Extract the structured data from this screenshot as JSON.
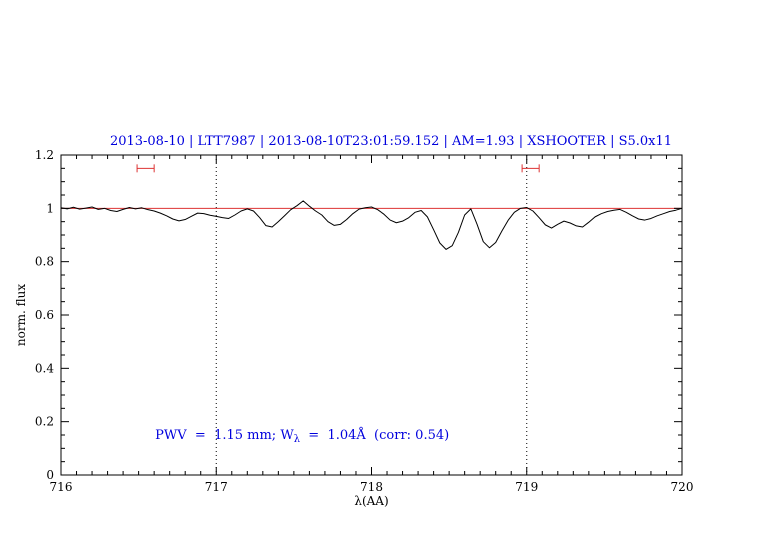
{
  "chart_data": {
    "type": "line",
    "title": "2013-08-10 | LTT7987 | 2013-08-10T23:01:59.152 | AM=1.93 | XSHOOTER | S5.0x11",
    "xlabel": "λ(AA)",
    "ylabel": "norm. flux",
    "xlim": [
      716,
      720
    ],
    "ylim": [
      0,
      1.2
    ],
    "x_tick_values": [
      716,
      717,
      718,
      719,
      720
    ],
    "x_tick_labels": [
      "716",
      "717",
      "718",
      "719",
      "720"
    ],
    "x_minor_step": 0.1,
    "y_tick_values": [
      0,
      0.2,
      0.4,
      0.6,
      0.8,
      1,
      1.2
    ],
    "y_tick_labels": [
      "0",
      "0.2",
      "0.4",
      "0.6",
      "0.8",
      "1",
      "1.2"
    ],
    "y_minor_step": 0.05,
    "grid": false,
    "legend": "none",
    "reference_line_y": 1.0,
    "dotted_vlines": [
      717,
      719
    ],
    "pwv_markers": [
      {
        "x1": 716.49,
        "x2": 716.6,
        "y": 1.15
      },
      {
        "x1": 718.97,
        "x2": 719.08,
        "y": 1.15
      }
    ],
    "annotation": {
      "x": 716.5,
      "y": 0.2,
      "text": "PWV = 1.15 mm; W_λ = 1.04Å (corr: 0.54)",
      "prefix": "PWV  =  1.15 mm; W",
      "sub": "λ",
      "suffix": "  =  1.04Å  (corr: 0.54)"
    },
    "colors": {
      "spectrum": "#000000",
      "reference_line": "#dd3333",
      "pwv_markers": "#dd3333",
      "title_text": "#0000dd",
      "annotation_text": "#0000dd",
      "dotted_lines": "#000000",
      "frame": "#000000"
    },
    "series": [
      {
        "name": "normalized spectrum",
        "points": [
          [
            716.0,
            1.002
          ],
          [
            716.04,
            0.998
          ],
          [
            716.08,
            1.004
          ],
          [
            716.12,
            0.997
          ],
          [
            716.16,
            1.001
          ],
          [
            716.2,
            1.005
          ],
          [
            716.24,
            0.996
          ],
          [
            716.28,
            1.0
          ],
          [
            716.32,
            0.992
          ],
          [
            716.36,
            0.988
          ],
          [
            716.4,
            0.996
          ],
          [
            716.44,
            1.003
          ],
          [
            716.48,
            0.998
          ],
          [
            716.52,
            1.002
          ],
          [
            716.56,
            0.995
          ],
          [
            716.6,
            0.99
          ],
          [
            716.64,
            0.982
          ],
          [
            716.68,
            0.972
          ],
          [
            716.72,
            0.96
          ],
          [
            716.76,
            0.953
          ],
          [
            716.8,
            0.958
          ],
          [
            716.84,
            0.97
          ],
          [
            716.88,
            0.982
          ],
          [
            716.92,
            0.98
          ],
          [
            716.96,
            0.974
          ],
          [
            717.0,
            0.97
          ],
          [
            717.04,
            0.965
          ],
          [
            717.08,
            0.962
          ],
          [
            717.12,
            0.975
          ],
          [
            717.16,
            0.99
          ],
          [
            717.2,
            0.998
          ],
          [
            717.24,
            0.99
          ],
          [
            717.28,
            0.965
          ],
          [
            717.32,
            0.935
          ],
          [
            717.36,
            0.93
          ],
          [
            717.4,
            0.95
          ],
          [
            717.44,
            0.972
          ],
          [
            717.48,
            0.995
          ],
          [
            717.52,
            1.01
          ],
          [
            717.56,
            1.028
          ],
          [
            717.6,
            1.008
          ],
          [
            717.64,
            0.99
          ],
          [
            717.68,
            0.975
          ],
          [
            717.72,
            0.95
          ],
          [
            717.76,
            0.936
          ],
          [
            717.8,
            0.94
          ],
          [
            717.84,
            0.958
          ],
          [
            717.88,
            0.98
          ],
          [
            717.92,
            0.997
          ],
          [
            717.96,
            1.002
          ],
          [
            718.0,
            1.005
          ],
          [
            718.04,
            0.995
          ],
          [
            718.08,
            0.978
          ],
          [
            718.12,
            0.956
          ],
          [
            718.16,
            0.946
          ],
          [
            718.2,
            0.952
          ],
          [
            718.24,
            0.965
          ],
          [
            718.28,
            0.985
          ],
          [
            718.32,
            0.992
          ],
          [
            718.36,
            0.968
          ],
          [
            718.4,
            0.92
          ],
          [
            718.44,
            0.87
          ],
          [
            718.48,
            0.846
          ],
          [
            718.52,
            0.86
          ],
          [
            718.56,
            0.91
          ],
          [
            718.6,
            0.975
          ],
          [
            718.64,
            0.998
          ],
          [
            718.68,
            0.94
          ],
          [
            718.72,
            0.875
          ],
          [
            718.76,
            0.852
          ],
          [
            718.8,
            0.872
          ],
          [
            718.84,
            0.915
          ],
          [
            718.88,
            0.955
          ],
          [
            718.92,
            0.985
          ],
          [
            718.96,
            1.0
          ],
          [
            719.0,
            1.003
          ],
          [
            719.04,
            0.99
          ],
          [
            719.08,
            0.965
          ],
          [
            719.12,
            0.938
          ],
          [
            719.16,
            0.926
          ],
          [
            719.2,
            0.94
          ],
          [
            719.24,
            0.952
          ],
          [
            719.28,
            0.945
          ],
          [
            719.32,
            0.934
          ],
          [
            719.36,
            0.93
          ],
          [
            719.4,
            0.948
          ],
          [
            719.44,
            0.968
          ],
          [
            719.48,
            0.98
          ],
          [
            719.52,
            0.988
          ],
          [
            719.56,
            0.993
          ],
          [
            719.6,
            0.996
          ],
          [
            719.64,
            0.985
          ],
          [
            719.68,
            0.972
          ],
          [
            719.72,
            0.96
          ],
          [
            719.76,
            0.956
          ],
          [
            719.8,
            0.962
          ],
          [
            719.84,
            0.972
          ],
          [
            719.88,
            0.98
          ],
          [
            719.92,
            0.988
          ],
          [
            719.96,
            0.993
          ],
          [
            720.0,
            1.0
          ]
        ]
      }
    ]
  }
}
